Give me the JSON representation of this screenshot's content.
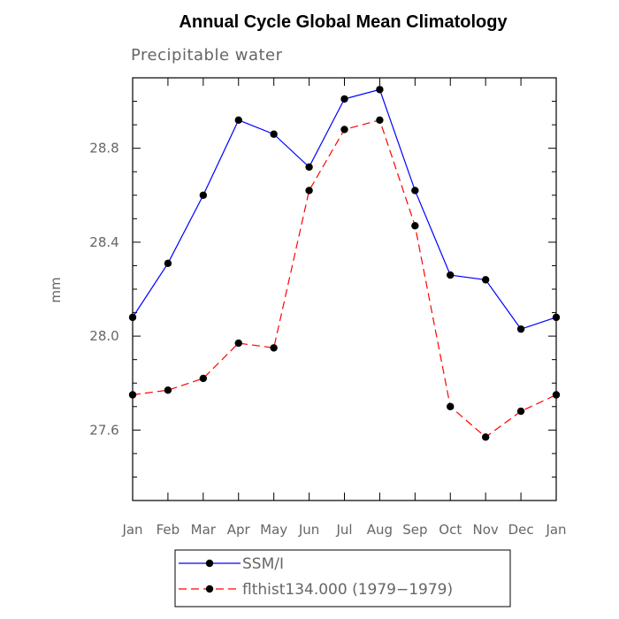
{
  "chart_data": {
    "type": "line",
    "title": "Annual Cycle Global Mean Climatology",
    "subtitle": "Precipitable water",
    "xlabel": "",
    "ylabel": "mm",
    "categories": [
      "Jan",
      "Feb",
      "Mar",
      "Apr",
      "May",
      "Jun",
      "Jul",
      "Aug",
      "Sep",
      "Oct",
      "Nov",
      "Dec",
      "Jan"
    ],
    "ylim": [
      27.3,
      29.1
    ],
    "yticks": [
      "27.6",
      "28.0",
      "28.4",
      "28.8"
    ],
    "series": [
      {
        "name": "SSM/I",
        "color": "#0000ff",
        "dash": "solid",
        "values": [
          28.08,
          28.31,
          28.6,
          28.92,
          28.86,
          28.72,
          29.01,
          29.05,
          28.62,
          28.26,
          28.24,
          28.03,
          28.08
        ]
      },
      {
        "name": "flthist134.000 (1979−1979)",
        "color": "#ff0000",
        "dash": "dashed",
        "values": [
          27.75,
          27.77,
          27.82,
          27.97,
          27.95,
          28.62,
          28.88,
          28.92,
          28.47,
          27.7,
          27.57,
          27.68,
          27.75
        ]
      }
    ],
    "grid": false,
    "legend_position": "bottom"
  }
}
